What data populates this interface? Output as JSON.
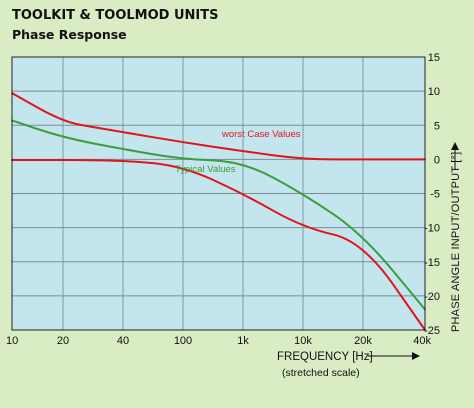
{
  "header": {
    "title": "TOOLKIT & TOOLMOD UNITS",
    "subtitle": "Phase Response"
  },
  "colors": {
    "background": "#d9ecc4",
    "plot_area": "#c3e5ee",
    "worst_case": "#e0141c",
    "typical": "#3a9e3a",
    "grid": "#7a8e94"
  },
  "chart_data": {
    "type": "line",
    "xlabel": "FREQUENCY [Hz]",
    "xlabel_note": "(stretched scale)",
    "ylabel": "PHASE ANGLE INPUT/OUTPUT [°]",
    "x_ticks": [
      "10",
      "20",
      "40",
      "100",
      "1k",
      "10k",
      "20k",
      "40k"
    ],
    "ylim": [
      -25,
      15
    ],
    "y_ticks": [
      "15",
      "10",
      "5",
      "0",
      "-5",
      "-10",
      "-15",
      "-20",
      "-25"
    ],
    "grid": true,
    "annotations": [
      {
        "text": "worst Case Values",
        "color": "#e0141c"
      },
      {
        "text": "Typical Values",
        "color": "#3a9e3a"
      }
    ],
    "series": [
      {
        "id": "worst-upper",
        "color": "#e0141c",
        "x": [
          "10",
          "20",
          "30",
          "40",
          "100",
          "1k",
          "10k",
          "20k",
          "40k"
        ],
        "y": [
          9.7,
          5.5,
          4.6,
          4.0,
          2.5,
          1.2,
          0.0,
          0.0,
          0.0
        ]
      },
      {
        "id": "typical",
        "color": "#3a9e3a",
        "x": [
          "10",
          "20",
          "40",
          "100",
          "1k",
          "10k",
          "20k",
          "40k"
        ],
        "y": [
          5.7,
          3.2,
          1.5,
          0.0,
          -0.3,
          -5.0,
          -11.0,
          -22.0
        ]
      },
      {
        "id": "worst-lower",
        "color": "#e0141c",
        "x": [
          "10",
          "40",
          "100",
          "1k",
          "10k",
          "20k",
          "40k"
        ],
        "y": [
          -0.1,
          -0.1,
          -1.0,
          -5.0,
          -10.0,
          -12.0,
          -25.0
        ]
      }
    ]
  }
}
